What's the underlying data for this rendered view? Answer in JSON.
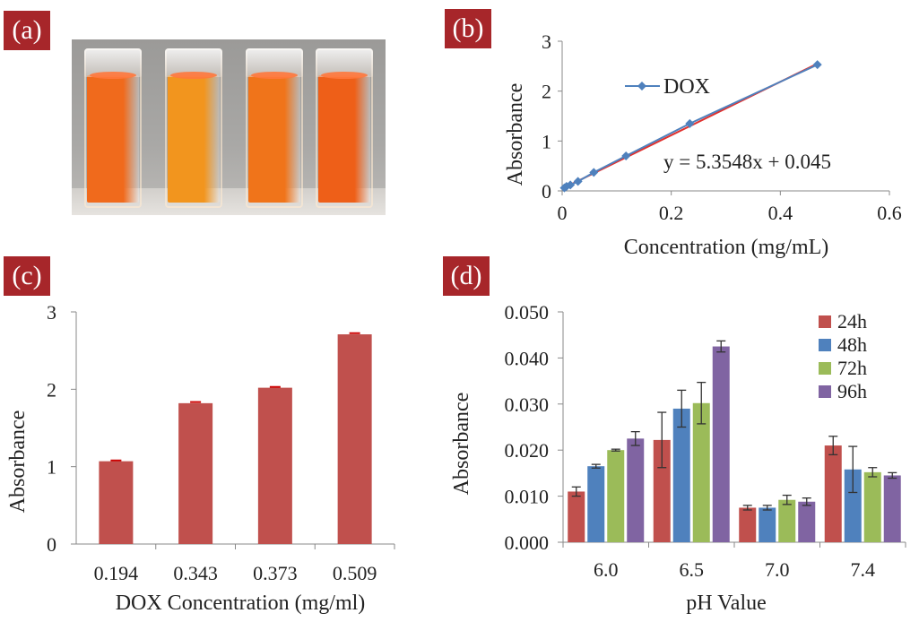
{
  "panels": {
    "a": {
      "tag": "(a)"
    },
    "b": {
      "tag": "(b)"
    },
    "c": {
      "tag": "(c)"
    },
    "d": {
      "tag": "(d)"
    }
  },
  "photo": {
    "cuvette_colors": [
      "#f06a1c",
      "#f2951e",
      "#f0741a",
      "#ee5f18"
    ]
  },
  "chart_data": [
    {
      "panel": "b",
      "type": "line",
      "title": "",
      "xlabel": "Concentration  (mg/mL)",
      "ylabel": "Absorbance",
      "xlim": [
        0,
        0.6
      ],
      "ylim": [
        0,
        3
      ],
      "xticks": [
        0,
        0.2,
        0.4,
        0.6
      ],
      "xtick_labels": [
        "0",
        "0.2",
        "0.4",
        "0.6"
      ],
      "yticks": [
        0,
        1,
        2,
        3
      ],
      "ytick_labels": [
        "0",
        "1",
        "2",
        "3"
      ],
      "series": [
        {
          "name": "DOX",
          "color": "#4f81bd",
          "x": [
            0.004,
            0.008,
            0.015,
            0.029,
            0.058,
            0.117,
            0.234,
            0.468
          ],
          "y": [
            0.06,
            0.09,
            0.12,
            0.19,
            0.37,
            0.7,
            1.35,
            2.53
          ]
        }
      ],
      "trendline": {
        "slope": 5.3548,
        "intercept": 0.045,
        "color": "#e0312e",
        "equation": "y = 5.3548x  + 0.045"
      },
      "legend_position": "top-left"
    },
    {
      "panel": "c",
      "type": "bar",
      "title": "",
      "xlabel": "DOX Concentration  (mg/ml)",
      "ylabel": "Absorbance",
      "categories": [
        "0.194",
        "0.343",
        "0.373",
        "0.509"
      ],
      "values": [
        1.07,
        1.82,
        2.02,
        2.71
      ],
      "errors": [
        0.01,
        0.015,
        0.01,
        0.015
      ],
      "color": "#c0504d",
      "ylim": [
        0,
        3
      ],
      "yticks": [
        0,
        1,
        2,
        3
      ],
      "ytick_labels": [
        "0",
        "1",
        "2",
        "3"
      ]
    },
    {
      "panel": "d",
      "type": "bar",
      "title": "",
      "xlabel": "pH Value",
      "ylabel": "Absorbance",
      "categories": [
        "6.0",
        "6.5",
        "7.0",
        "7.4"
      ],
      "ylim": [
        0,
        0.05
      ],
      "yticks": [
        0,
        0.01,
        0.02,
        0.03,
        0.04,
        0.05
      ],
      "ytick_labels": [
        "0.000",
        "0.010",
        "0.020",
        "0.030",
        "0.040",
        "0.050"
      ],
      "series": [
        {
          "name": "24h",
          "color": "#c0504d",
          "values": [
            0.011,
            0.0222,
            0.0075,
            0.021
          ],
          "errors": [
            0.001,
            0.006,
            0.0005,
            0.002
          ]
        },
        {
          "name": "48h",
          "color": "#4f81bd",
          "values": [
            0.0165,
            0.029,
            0.0075,
            0.0158
          ],
          "errors": [
            0.0004,
            0.004,
            0.0005,
            0.005
          ]
        },
        {
          "name": "72h",
          "color": "#9bbb59",
          "values": [
            0.02,
            0.0302,
            0.0092,
            0.0152
          ],
          "errors": [
            0.0002,
            0.0045,
            0.001,
            0.001
          ]
        },
        {
          "name": "96h",
          "color": "#8064a2",
          "values": [
            0.0225,
            0.0425,
            0.0088,
            0.0145
          ],
          "errors": [
            0.0015,
            0.0012,
            0.0008,
            0.0006
          ]
        }
      ],
      "legend_position": "top-right"
    }
  ]
}
